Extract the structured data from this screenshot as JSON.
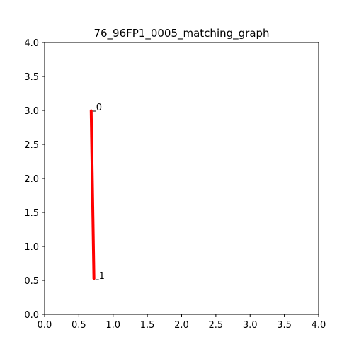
{
  "chart_data": {
    "type": "line",
    "title": "76_96FP1_0005_matching_graph",
    "xlabel": "",
    "ylabel": "",
    "xlim": [
      0,
      4
    ],
    "ylim": [
      0,
      4
    ],
    "xticks": [
      "0.0",
      "0.5",
      "1.0",
      "1.5",
      "2.0",
      "2.5",
      "3.0",
      "3.5",
      "4.0"
    ],
    "yticks": [
      "0.0",
      "0.5",
      "1.0",
      "1.5",
      "2.0",
      "2.5",
      "3.0",
      "3.5",
      "4.0"
    ],
    "grid": false,
    "nodes": [
      {
        "label": "0",
        "x": 0.68,
        "y": 3.0
      },
      {
        "label": "1",
        "x": 0.72,
        "y": 0.52
      }
    ],
    "edges": [
      {
        "from": 0,
        "to": 1,
        "color": "#ff0000"
      }
    ]
  }
}
